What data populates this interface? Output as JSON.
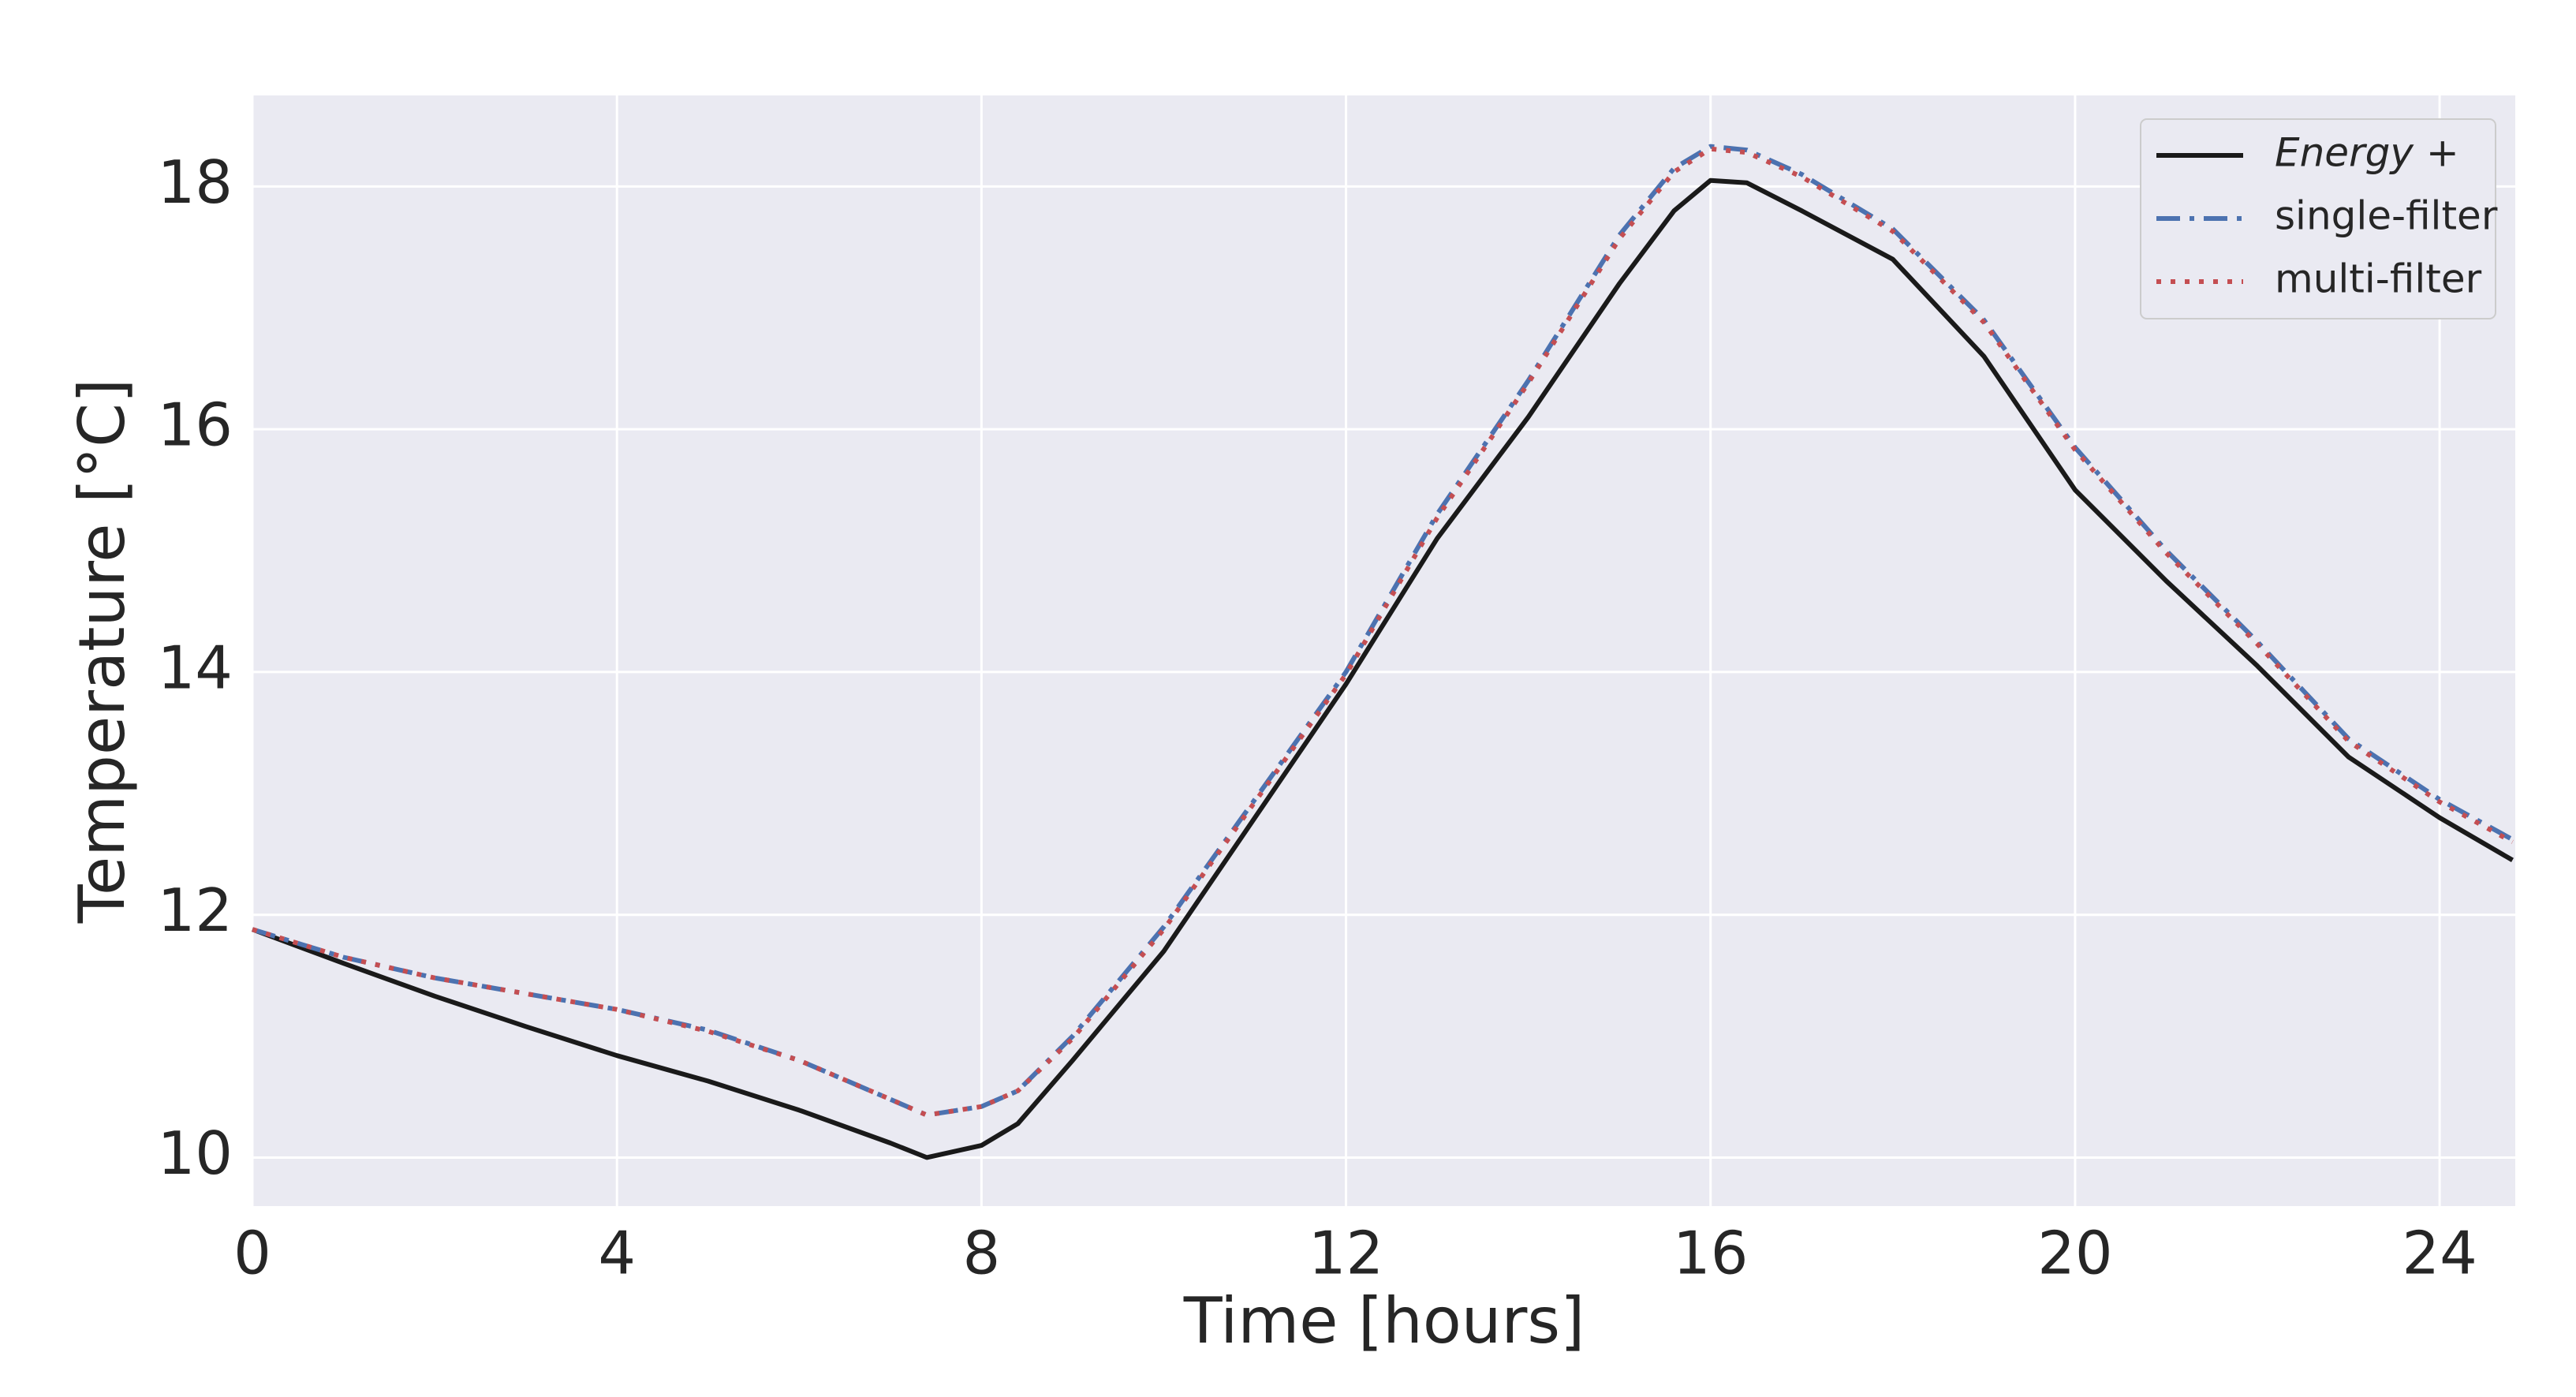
{
  "chart_data": {
    "type": "line",
    "x_label": "Time [hours]",
    "y_label": "Temperature [°C]",
    "x": [
      0,
      1,
      2,
      3,
      4,
      5,
      6,
      7,
      7.4,
      8,
      8.4,
      9,
      10,
      11,
      12,
      13,
      14,
      15,
      15.6,
      16,
      16.4,
      17,
      18,
      19,
      20,
      21,
      22,
      23,
      24,
      24.8
    ],
    "series": [
      {
        "name": "Energy +",
        "color": "#1a1a1a",
        "linestyle": "solid",
        "values": [
          11.88,
          11.6,
          11.33,
          11.08,
          10.84,
          10.63,
          10.39,
          10.12,
          10.0,
          10.1,
          10.28,
          10.8,
          11.7,
          12.8,
          13.9,
          15.1,
          16.1,
          17.2,
          17.8,
          18.05,
          18.03,
          17.8,
          17.4,
          16.6,
          15.5,
          14.75,
          14.05,
          13.3,
          12.8,
          12.45
        ]
      },
      {
        "name": "single-filter",
        "color": "#4c72b0",
        "linestyle": "dashdot",
        "values": [
          11.88,
          11.65,
          11.48,
          11.35,
          11.22,
          11.05,
          10.8,
          10.48,
          10.35,
          10.42,
          10.55,
          11.0,
          11.9,
          12.95,
          14.0,
          15.3,
          16.4,
          17.6,
          18.15,
          18.33,
          18.3,
          18.1,
          17.65,
          16.9,
          15.85,
          15.0,
          14.25,
          13.45,
          12.95,
          12.62
        ]
      },
      {
        "name": "multi-filter",
        "color": "#c44e52",
        "linestyle": "dotted",
        "values": [
          11.88,
          11.65,
          11.48,
          11.35,
          11.22,
          11.04,
          10.8,
          10.48,
          10.35,
          10.42,
          10.55,
          10.98,
          11.88,
          12.93,
          13.98,
          15.27,
          16.38,
          17.57,
          18.12,
          18.31,
          18.28,
          18.08,
          17.63,
          16.88,
          15.83,
          14.98,
          14.23,
          13.43,
          12.93,
          12.6
        ]
      }
    ],
    "xlim": [
      0,
      24.83
    ],
    "ylim": [
      9.6,
      18.75
    ],
    "xticks": [
      0,
      4,
      8,
      12,
      16,
      20,
      24
    ],
    "yticks": [
      10,
      12,
      14,
      16,
      18
    ],
    "grid": true,
    "legend": "upper right"
  }
}
